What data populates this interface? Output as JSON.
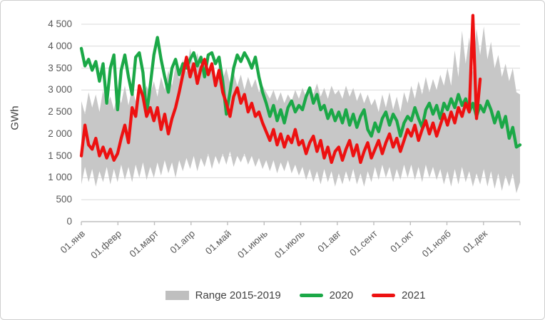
{
  "frame": {
    "background": "#ffffff",
    "border_color": "#cfcfcf"
  },
  "chart_data": {
    "type": "line",
    "title": "",
    "xlabel": "",
    "ylabel": "GWh",
    "y_max": 4500,
    "y_tick_step": 500,
    "y_tick_labels": [
      "0",
      "500",
      "1 000",
      "1 500",
      "2 000",
      "2 500",
      "3 000",
      "3 500",
      "4 000",
      "4 500"
    ],
    "x_tick_labels": [
      "01.янв",
      "01.февр",
      "01.март",
      "01.апр",
      "01.май",
      "01.июнь",
      "01.июль",
      "01.авг",
      "01.сент",
      "01.окт",
      "01.нояб",
      "01.дек"
    ],
    "grid": true,
    "legend_position": "bottom",
    "colors": {
      "grid": "#d9d9d9",
      "axis": "#bfbfbf",
      "tick_text": "#595959",
      "legend_text": "#404040"
    },
    "sampling": {
      "start_day": 1,
      "day_step": 3,
      "days_in_year": 364,
      "note": "values estimated from plot, GWh"
    },
    "series": [
      {
        "name": "Range 2015-2019",
        "type": "band",
        "color": "#c7c7c7",
        "legend_swatch_color": "#bfbfbf",
        "upper": [
          2750,
          2450,
          2950,
          2600,
          2900,
          2500,
          3000,
          2650,
          2850,
          2550,
          2950,
          2700,
          3100,
          2650,
          3050,
          2750,
          3150,
          2800,
          3100,
          2900,
          3200,
          2850,
          3300,
          3000,
          3450,
          3100,
          3550,
          3250,
          3700,
          3400,
          3950,
          3500,
          3850,
          3450,
          3750,
          3400,
          3650,
          3300,
          3550,
          3250,
          3500,
          3150,
          3400,
          3100,
          3350,
          3000,
          3300,
          3050,
          3250,
          2950,
          3100,
          2950,
          2800,
          3000,
          2750,
          2950,
          2700,
          2900,
          2750,
          3000,
          2800,
          3050,
          2850,
          3100,
          2900,
          3150,
          2850,
          3050,
          2800,
          3100,
          2900,
          3000,
          2800,
          3100,
          2850,
          3050,
          2750,
          2950,
          2700,
          2900,
          2650,
          2800,
          2500,
          2900,
          2600,
          2950,
          2550,
          2850,
          2500,
          2950,
          2700,
          3100,
          2800,
          3200,
          2900,
          3300,
          2950,
          3250,
          3000,
          3350,
          3100,
          3500,
          3100,
          3900,
          3300,
          4350,
          3600,
          4200,
          3400,
          4400,
          3800,
          4450,
          3700,
          4100,
          3500,
          3800,
          3300,
          3600,
          3200,
          3500,
          2950,
          2900
        ],
        "lower": [
          850,
          1250,
          900,
          1200,
          800,
          1150,
          900,
          1250,
          850,
          1200,
          900,
          1300,
          950,
          1250,
          900,
          1300,
          1000,
          1350,
          950,
          1250,
          1000,
          1350,
          1050,
          1400,
          1100,
          1350,
          1000,
          1400,
          1150,
          1450,
          1200,
          1500,
          1150,
          1450,
          1250,
          1550,
          1200,
          1500,
          1300,
          1550,
          1300,
          1600,
          1250,
          1500,
          1350,
          1550,
          1300,
          1500,
          1250,
          1450,
          1200,
          1400,
          1150,
          1400,
          1100,
          1350,
          1150,
          1400,
          1100,
          1300,
          1050,
          1250,
          950,
          1200,
          900,
          1150,
          850,
          1200,
          900,
          1150,
          800,
          1100,
          850,
          1150,
          900,
          1200,
          850,
          1100,
          800,
          1150,
          900,
          1250,
          950,
          1300,
          1000,
          1250,
          900,
          1200,
          950,
          1300,
          1000,
          1300,
          950,
          1250,
          900,
          1300,
          1000,
          1250,
          950,
          1200,
          850,
          1150,
          800,
          1200,
          850,
          1250,
          900,
          1150,
          800,
          1100,
          850,
          1200,
          800,
          1150,
          750,
          1100,
          700,
          1050,
          800,
          1100,
          650,
          900
        ]
      },
      {
        "name": "2020",
        "type": "line",
        "color": "#1ba847",
        "values": [
          3950,
          3550,
          3700,
          3450,
          3650,
          3200,
          3600,
          2700,
          3500,
          3800,
          2550,
          3450,
          3800,
          3300,
          2900,
          3750,
          3850,
          3400,
          2450,
          3100,
          3800,
          4200,
          3700,
          3300,
          2950,
          3500,
          3700,
          3350,
          3600,
          3500,
          3700,
          3850,
          3550,
          3750,
          3300,
          3800,
          3850,
          3600,
          3750,
          3200,
          2450,
          2950,
          3500,
          3800,
          3650,
          3850,
          3700,
          3500,
          3750,
          3300,
          2950,
          2700,
          2400,
          2650,
          2300,
          2550,
          2250,
          2600,
          2750,
          2500,
          2650,
          2550,
          2850,
          3050,
          2700,
          2900,
          2550,
          2650,
          2350,
          2550,
          2300,
          2500,
          2250,
          2550,
          2200,
          2450,
          2150,
          2400,
          2550,
          2100,
          1950,
          2250,
          2050,
          2350,
          2500,
          2200,
          2450,
          2300,
          1950,
          2250,
          2400,
          2300,
          2600,
          2350,
          2150,
          2550,
          2700,
          2450,
          2650,
          2350,
          2700,
          2550,
          2800,
          2600,
          2900,
          2650,
          2800,
          2500,
          2700,
          2400,
          2650,
          2500,
          2750,
          2550,
          2250,
          2500,
          2150,
          2400,
          1900,
          2150,
          1700,
          1750
        ]
      },
      {
        "name": "2021",
        "type": "line",
        "color": "#ed1111",
        "values": [
          1500,
          2200,
          1750,
          1650,
          1900,
          1500,
          1700,
          1450,
          1650,
          1400,
          1550,
          1900,
          2200,
          1800,
          2600,
          2400,
          3100,
          2850,
          2400,
          2600,
          2300,
          2600,
          2100,
          2450,
          2000,
          2350,
          2600,
          2950,
          3350,
          3750,
          3300,
          3600,
          3150,
          3500,
          3700,
          3350,
          3600,
          3100,
          3450,
          2950,
          2700,
          2400,
          2850,
          3050,
          2700,
          2900,
          2500,
          2700,
          2400,
          2500,
          2250,
          2050,
          1850,
          2100,
          1750,
          2000,
          1700,
          1950,
          1800,
          2100,
          1750,
          1850,
          1550,
          1800,
          1950,
          1600,
          1850,
          1450,
          1700,
          1350,
          1600,
          1700,
          1400,
          1650,
          1850,
          1500,
          1750,
          1350,
          1600,
          1800,
          1450,
          1650,
          1850,
          1550,
          1800,
          2000,
          1700,
          1900,
          1600,
          1850,
          2100,
          1950,
          2200,
          1850,
          2100,
          2300,
          2000,
          2250,
          1950,
          2200,
          2450,
          2200,
          2500,
          2250,
          2600,
          2400,
          2700,
          2500,
          4700,
          2350,
          3250,
          null,
          null,
          null,
          null,
          null,
          null,
          null,
          null,
          null,
          null,
          null
        ]
      }
    ]
  },
  "legend": {
    "items": [
      {
        "label": "Range 2015-2019",
        "swatch": "area"
      },
      {
        "label": "2020",
        "swatch": "line"
      },
      {
        "label": "2021",
        "swatch": "line"
      }
    ]
  }
}
